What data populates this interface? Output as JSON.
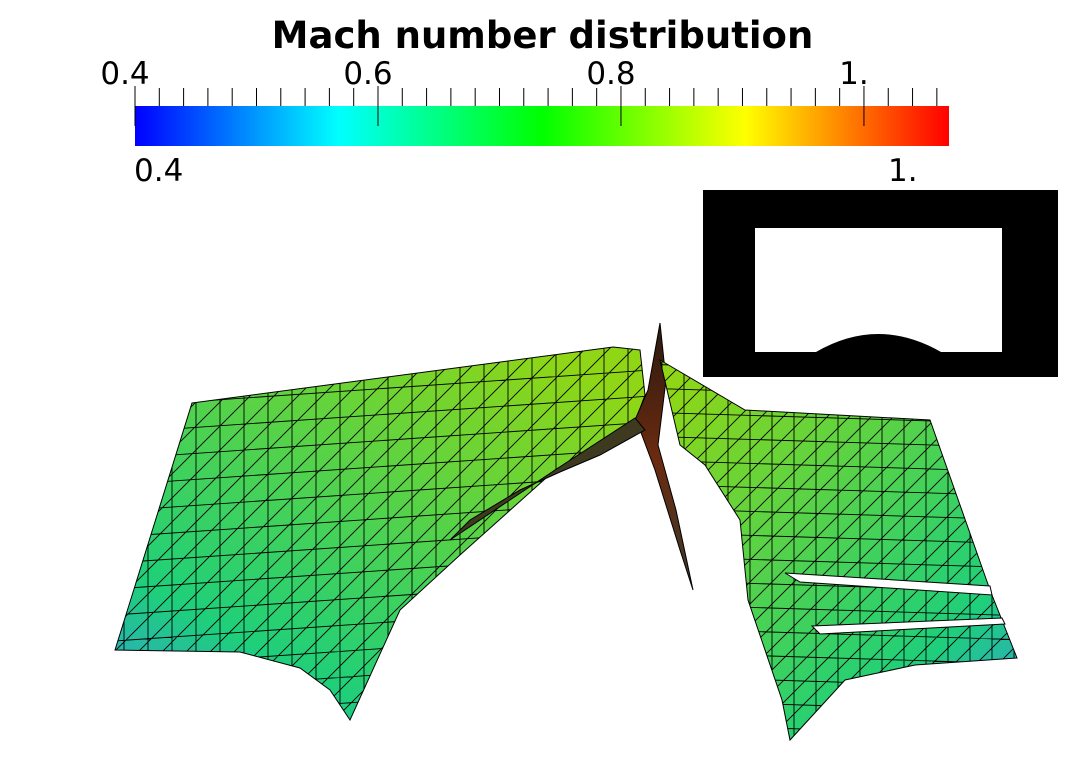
{
  "title": "Mach number distribution",
  "color_scale": {
    "variable": "Mach number",
    "min": 0.4,
    "max": 1.07,
    "major_ticks": [
      {
        "value": 0.4,
        "label": "0.4"
      },
      {
        "value": 0.6,
        "label": "0.6"
      },
      {
        "value": 0.8,
        "label": "0.8"
      },
      {
        "value": 1.0,
        "label": "1."
      }
    ],
    "range_min_label": "0.4",
    "range_max_label": "1.",
    "colormap": [
      "#0000ff",
      "#00ffff",
      "#00ff00",
      "#ffff00",
      "#ff0000"
    ]
  },
  "surface_color_low": "#2fa0d8",
  "surface_color_mid": "#1fcf7a",
  "surface_color_high": "#8fd616",
  "mesh_line_color": "#000000",
  "inset": {
    "background": "#000000",
    "domain_color": "#ffffff"
  }
}
